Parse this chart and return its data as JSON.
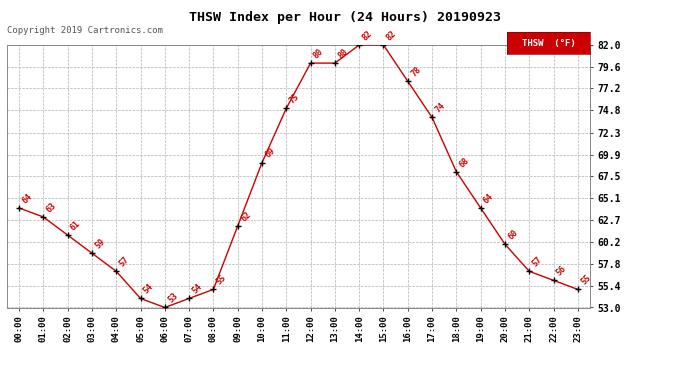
{
  "title": "THSW Index per Hour (24 Hours) 20190923",
  "copyright": "Copyright 2019 Cartronics.com",
  "legend_label": "THSW  (°F)",
  "hours": [
    0,
    1,
    2,
    3,
    4,
    5,
    6,
    7,
    8,
    9,
    10,
    11,
    12,
    13,
    14,
    15,
    16,
    17,
    18,
    19,
    20,
    21,
    22,
    23
  ],
  "values": [
    64,
    63,
    61,
    59,
    57,
    54,
    53,
    54,
    55,
    62,
    69,
    75,
    80,
    80,
    82,
    82,
    78,
    74,
    68,
    64,
    60,
    57,
    56,
    55
  ],
  "ylim_min": 53.0,
  "ylim_max": 82.0,
  "yticks": [
    53.0,
    55.4,
    57.8,
    60.2,
    62.7,
    65.1,
    67.5,
    69.9,
    72.3,
    74.8,
    77.2,
    79.6,
    82.0
  ],
  "ytick_labels": [
    "53.0",
    "55.4",
    "57.8",
    "60.2",
    "62.7",
    "65.1",
    "67.5",
    "69.9",
    "72.3",
    "74.8",
    "77.2",
    "79.6",
    "82.0"
  ],
  "line_color": "#cc0000",
  "marker_color": "#000000",
  "label_color": "#cc0000",
  "title_color": "#000000",
  "background_color": "#ffffff",
  "grid_color": "#b0b0b0",
  "legend_bg": "#cc0000",
  "legend_text_color": "#ffffff",
  "fig_width": 6.9,
  "fig_height": 3.75,
  "dpi": 100
}
